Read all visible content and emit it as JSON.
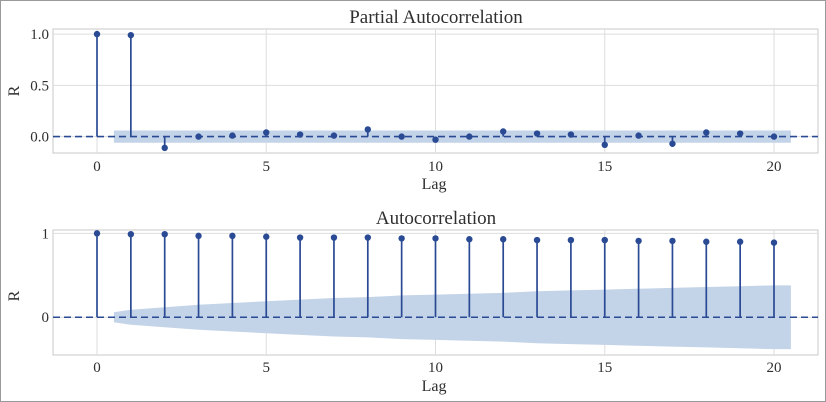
{
  "colors": {
    "stem": "#2a4a94",
    "band": "#c3d3e8",
    "grid": "#dddddd",
    "frame": "#c8c8c8"
  },
  "chart_data": [
    {
      "type": "stem",
      "title": "Partial Autocorrelation",
      "xlabel": "Lag",
      "ylabel": "R",
      "xticks": [
        0,
        5,
        10,
        15,
        20
      ],
      "ytick_labels": [
        "1.0",
        "0.5",
        "0.0"
      ],
      "yticks": [
        1.0,
        0.5,
        0.0
      ],
      "xlim": [
        -1.3,
        21.3
      ],
      "ylim": [
        -0.16,
        1.05
      ],
      "grid": true,
      "lags": [
        0,
        1,
        2,
        3,
        4,
        5,
        6,
        7,
        8,
        9,
        10,
        11,
        12,
        13,
        14,
        15,
        16,
        17,
        18,
        19,
        20
      ],
      "values": [
        1.0,
        0.99,
        -0.11,
        0.0,
        0.01,
        0.04,
        0.02,
        0.01,
        0.07,
        0.0,
        -0.03,
        0.0,
        0.05,
        0.03,
        0.02,
        -0.08,
        0.01,
        -0.07,
        0.04,
        0.03,
        0.0
      ],
      "confidence_band": {
        "x": [
          0.5,
          20.5
        ],
        "upper": [
          0.06,
          0.06
        ],
        "lower": [
          -0.06,
          -0.06
        ]
      }
    },
    {
      "type": "stem",
      "title": "Autocorrelation",
      "xlabel": "Lag",
      "ylabel": "R",
      "xticks": [
        0,
        5,
        10,
        15,
        20
      ],
      "ytick_labels": [
        "1",
        "0"
      ],
      "yticks": [
        1,
        0
      ],
      "xlim": [
        -1.3,
        21.3
      ],
      "ylim": [
        -0.45,
        1.04
      ],
      "grid": true,
      "lags": [
        0,
        1,
        2,
        3,
        4,
        5,
        6,
        7,
        8,
        9,
        10,
        11,
        12,
        13,
        14,
        15,
        16,
        17,
        18,
        19,
        20
      ],
      "values": [
        1.0,
        0.99,
        0.99,
        0.97,
        0.97,
        0.96,
        0.95,
        0.95,
        0.95,
        0.94,
        0.94,
        0.93,
        0.93,
        0.92,
        0.92,
        0.92,
        0.91,
        0.91,
        0.9,
        0.9,
        0.89
      ],
      "confidence_band": {
        "x": [
          0.5,
          1,
          2,
          3,
          4,
          5,
          6,
          7,
          8,
          9,
          10,
          11,
          12,
          13,
          14,
          15,
          16,
          17,
          18,
          19,
          20,
          20.5
        ],
        "upper": [
          0.06,
          0.09,
          0.12,
          0.15,
          0.17,
          0.19,
          0.21,
          0.23,
          0.24,
          0.26,
          0.27,
          0.28,
          0.29,
          0.31,
          0.32,
          0.33,
          0.34,
          0.35,
          0.36,
          0.37,
          0.38,
          0.38
        ],
        "lower": [
          -0.06,
          -0.09,
          -0.12,
          -0.15,
          -0.17,
          -0.19,
          -0.21,
          -0.23,
          -0.24,
          -0.26,
          -0.27,
          -0.28,
          -0.29,
          -0.31,
          -0.32,
          -0.33,
          -0.34,
          -0.35,
          -0.36,
          -0.37,
          -0.38,
          -0.38
        ]
      }
    }
  ]
}
